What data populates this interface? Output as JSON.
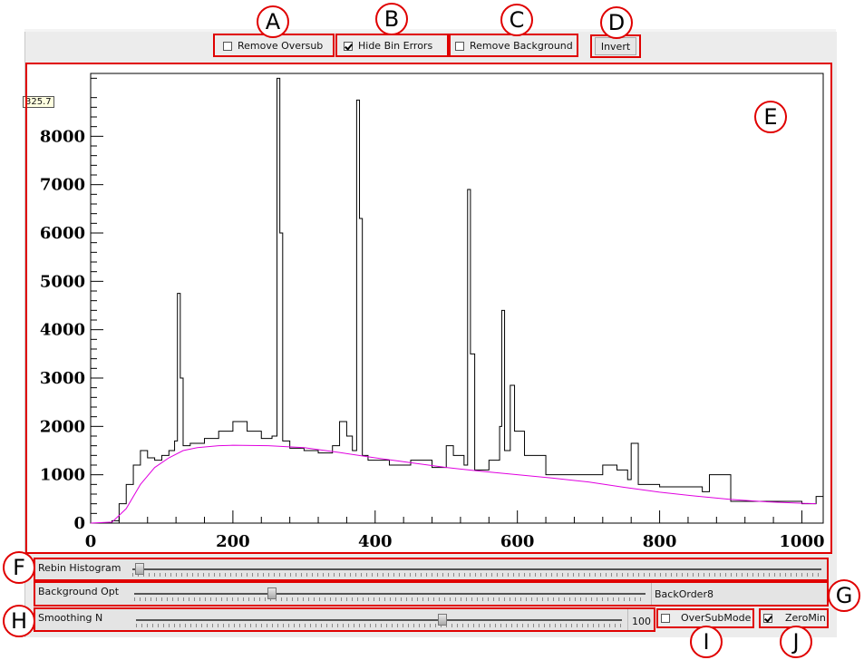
{
  "toolbar": {
    "remove_oversub": {
      "label": "Remove Oversub",
      "checked": false
    },
    "hide_bin_errors": {
      "label": "Hide Bin Errors",
      "checked": true
    },
    "remove_background": {
      "label": "Remove Background",
      "checked": false
    },
    "invert_label": "Invert"
  },
  "tooltip": "325.7",
  "callouts": [
    "A",
    "B",
    "C",
    "D",
    "E",
    "F",
    "G",
    "H",
    "I",
    "J"
  ],
  "controls": {
    "rebin": {
      "label": "Rebin Histogram",
      "value_fraction": 0.01
    },
    "background": {
      "label": "Background Opt",
      "value_fraction": 0.27,
      "readout": "BackOrder8"
    },
    "smoothing": {
      "label": "Smoothing N",
      "value_fraction": 0.63,
      "readout": "100"
    },
    "oversubmode": {
      "label": "OverSubMode",
      "checked": false
    },
    "zeromin": {
      "label": "ZeroMin",
      "checked": true
    }
  },
  "colors": {
    "background_curve": "#e000e0",
    "highlight": "#e00000"
  },
  "chart_data": {
    "type": "line",
    "xlim": [
      0,
      1030
    ],
    "ylim": [
      0,
      9300
    ],
    "x_ticks": [
      0,
      200,
      400,
      600,
      800,
      1000
    ],
    "y_ticks": [
      0,
      1000,
      2000,
      3000,
      4000,
      5000,
      6000,
      7000,
      8000
    ],
    "series": [
      {
        "role": "histogram",
        "x": [
          0,
          20,
          30,
          40,
          50,
          60,
          70,
          80,
          90,
          100,
          110,
          118,
          122,
          126,
          130,
          140,
          160,
          180,
          200,
          220,
          240,
          255,
          262,
          266,
          270,
          280,
          300,
          320,
          340,
          350,
          360,
          368,
          374,
          378,
          382,
          390,
          420,
          450,
          480,
          500,
          510,
          525,
          530,
          534,
          540,
          560,
          575,
          578,
          582,
          590,
          596,
          610,
          640,
          700,
          720,
          740,
          755,
          760,
          770,
          800,
          860,
          870,
          900,
          960,
          1000,
          1020,
          1030
        ],
        "y": [
          0,
          0,
          50,
          400,
          800,
          1200,
          1500,
          1350,
          1300,
          1400,
          1500,
          1700,
          4750,
          3000,
          1600,
          1650,
          1750,
          1900,
          2100,
          1900,
          1750,
          1800,
          9200,
          6000,
          1700,
          1550,
          1500,
          1450,
          1600,
          2100,
          1800,
          1500,
          8750,
          6300,
          1400,
          1300,
          1200,
          1300,
          1150,
          1600,
          1400,
          1200,
          6900,
          3500,
          1100,
          1300,
          2000,
          4400,
          1500,
          2850,
          1900,
          1400,
          1000,
          1000,
          1200,
          1100,
          900,
          1650,
          800,
          750,
          650,
          1000,
          450,
          450,
          400,
          550,
          400
        ]
      },
      {
        "role": "background",
        "x": [
          0,
          30,
          50,
          70,
          90,
          110,
          130,
          150,
          180,
          200,
          250,
          300,
          350,
          400,
          450,
          500,
          550,
          600,
          650,
          700,
          750,
          800,
          850,
          900,
          950,
          1000,
          1020
        ],
        "y": [
          0,
          20,
          300,
          800,
          1150,
          1350,
          1500,
          1560,
          1600,
          1610,
          1600,
          1560,
          1460,
          1350,
          1250,
          1150,
          1070,
          1000,
          930,
          850,
          740,
          640,
          560,
          490,
          440,
          410,
          400
        ]
      }
    ]
  }
}
